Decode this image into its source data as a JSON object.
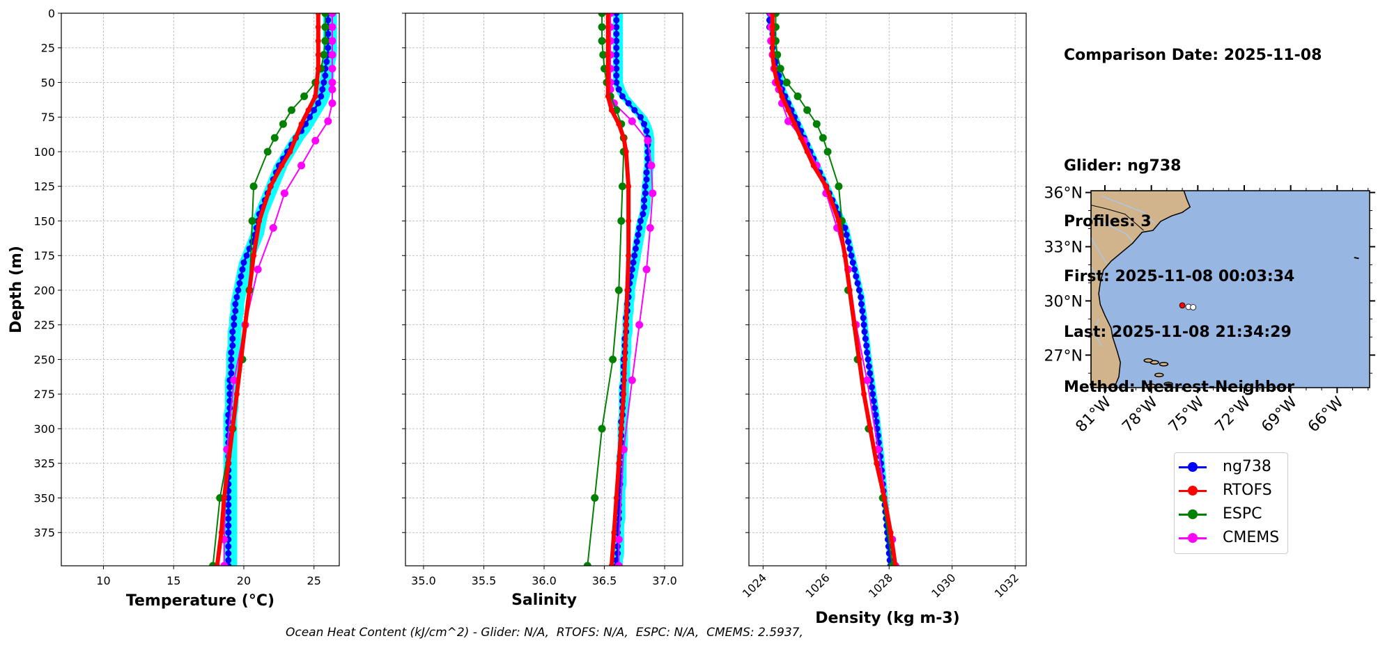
{
  "info": {
    "comparison_date": "Comparison Date: 2025-11-08",
    "glider": "Glider: ng738",
    "profiles": "Profiles: 3",
    "first": "First: 2025-11-08 00:03:34",
    "last": "Last: 2025-11-08 21:34:29",
    "method": "Method: Nearest-Neighbor"
  },
  "footer": "Ocean Heat Content (kJ/cm^2) - Glider: N/A,  RTOFS: N/A,  ESPC: N/A,  CMEMS: 2.5937,",
  "colors": {
    "ng738": "#0000ff",
    "glider_band": "#00ffff",
    "RTOFS": "#ff0000",
    "ESPC": "#008000",
    "CMEMS": "#ff00ff",
    "land": "#d2b48c",
    "ocean": "#97b6e1",
    "river": "#aac8e8"
  },
  "legend": [
    {
      "name": "ng738",
      "color": "#0000ff"
    },
    {
      "name": "RTOFS",
      "color": "#ff0000"
    },
    {
      "name": "ESPC",
      "color": "#008000"
    },
    {
      "name": "CMEMS",
      "color": "#ff00ff"
    }
  ],
  "chart_data": [
    {
      "type": "line",
      "xlabel": "Temperature (°C)",
      "ylabel": "Depth (m)",
      "xlim": [
        7,
        26.8
      ],
      "ylim": [
        399,
        0
      ],
      "xticks": [
        10,
        15,
        20,
        25
      ],
      "yticks": [
        0,
        25,
        50,
        75,
        100,
        125,
        150,
        175,
        200,
        225,
        250,
        275,
        300,
        325,
        350,
        375
      ],
      "grid": true,
      "series": [
        {
          "name": "ng738",
          "y": [
            0,
            5,
            10,
            15,
            20,
            25,
            30,
            35,
            40,
            45,
            50,
            55,
            60,
            65,
            70,
            75,
            80,
            85,
            90,
            95,
            100,
            105,
            110,
            115,
            120,
            125,
            130,
            135,
            140,
            145,
            150,
            155,
            160,
            165,
            170,
            175,
            180,
            185,
            190,
            195,
            200,
            205,
            210,
            215,
            220,
            225,
            230,
            235,
            240,
            245,
            250,
            255,
            260,
            265,
            270,
            275,
            280,
            285,
            290,
            295,
            300,
            305,
            310,
            315,
            320,
            325,
            330,
            335,
            340,
            345,
            350,
            355,
            360,
            365,
            370,
            375,
            380,
            385,
            390,
            395,
            399
          ],
          "x": [
            26.0,
            26.0,
            26.0,
            26.0,
            26.0,
            26.0,
            26.0,
            25.9,
            25.8,
            25.8,
            25.7,
            25.6,
            25.5,
            25.3,
            25.0,
            24.7,
            24.4,
            24.1,
            23.7,
            23.4,
            23.1,
            22.8,
            22.5,
            22.3,
            22.1,
            21.9,
            21.7,
            21.5,
            21.3,
            21.1,
            21.0,
            20.9,
            20.8,
            20.6,
            20.4,
            20.2,
            20.0,
            19.9,
            19.8,
            19.7,
            19.6,
            19.5,
            19.4,
            19.4,
            19.3,
            19.3,
            19.2,
            19.2,
            19.2,
            19.1,
            19.1,
            19.1,
            19.1,
            19.0,
            19.0,
            19.0,
            19.0,
            19.0,
            18.9,
            18.9,
            18.9,
            18.9,
            18.9,
            18.9,
            18.9,
            18.9,
            18.9,
            18.9,
            18.9,
            18.9,
            18.9,
            18.9,
            18.9,
            18.9,
            18.9,
            18.9,
            18.9,
            18.9,
            18.9,
            18.9,
            18.9
          ]
        },
        {
          "name": "RTOFS",
          "y": [
            0,
            10,
            20,
            30,
            40,
            50,
            60,
            70,
            80,
            90,
            100,
            110,
            125,
            150,
            175,
            200,
            225,
            250,
            275,
            300,
            325,
            350,
            375,
            399
          ],
          "x": [
            25.3,
            25.3,
            25.3,
            25.3,
            25.3,
            25.2,
            25.1,
            24.6,
            24.1,
            23.7,
            23.3,
            22.7,
            21.9,
            21.1,
            20.7,
            20.4,
            20.1,
            19.8,
            19.5,
            19.2,
            18.9,
            18.6,
            18.4,
            18.1
          ]
        },
        {
          "name": "ESPC",
          "y": [
            0,
            10,
            20,
            30,
            40,
            50,
            60,
            70,
            80,
            90,
            100,
            125,
            150,
            200,
            250,
            300,
            350,
            399
          ],
          "x": [
            25.8,
            25.8,
            25.8,
            25.7,
            25.5,
            25.1,
            24.3,
            23.4,
            22.8,
            22.2,
            21.7,
            20.7,
            20.6,
            20.4,
            19.9,
            19.2,
            18.3,
            17.8
          ]
        },
        {
          "name": "CMEMS",
          "y": [
            0,
            10,
            20,
            30,
            40,
            50,
            55,
            65,
            78,
            92,
            110,
            130,
            155,
            185,
            225,
            265,
            315,
            380,
            399
          ],
          "x": [
            26.3,
            26.3,
            26.3,
            26.3,
            26.3,
            26.3,
            26.3,
            26.3,
            26.0,
            25.1,
            24.1,
            22.9,
            22.1,
            21.0,
            20.1,
            19.3,
            18.8,
            18.6,
            18.6
          ]
        }
      ]
    },
    {
      "type": "line",
      "xlabel": "Salinity",
      "ylabel": "",
      "xlim": [
        34.85,
        37.15
      ],
      "ylim": [
        399,
        0
      ],
      "xticks": [
        35.0,
        35.5,
        36.0,
        36.5,
        37.0
      ],
      "grid": true,
      "series": [
        {
          "name": "ng738",
          "y": [
            0,
            5,
            10,
            15,
            20,
            25,
            30,
            35,
            40,
            45,
            50,
            55,
            60,
            65,
            70,
            75,
            80,
            85,
            90,
            95,
            100,
            105,
            110,
            115,
            120,
            125,
            130,
            135,
            140,
            145,
            150,
            155,
            160,
            165,
            170,
            175,
            180,
            185,
            190,
            195,
            200,
            205,
            210,
            215,
            220,
            225,
            230,
            235,
            240,
            245,
            250,
            255,
            260,
            265,
            270,
            275,
            280,
            285,
            290,
            295,
            300,
            305,
            310,
            315,
            320,
            325,
            330,
            335,
            340,
            345,
            350,
            355,
            360,
            365,
            370,
            375,
            380,
            385,
            390,
            395,
            399
          ],
          "x": [
            36.6,
            36.6,
            36.6,
            36.6,
            36.6,
            36.6,
            36.6,
            36.6,
            36.6,
            36.6,
            36.6,
            36.62,
            36.65,
            36.7,
            36.75,
            36.8,
            36.83,
            36.85,
            36.86,
            36.86,
            36.86,
            36.86,
            36.86,
            36.85,
            36.85,
            36.84,
            36.84,
            36.83,
            36.83,
            36.82,
            36.8,
            36.79,
            36.78,
            36.77,
            36.76,
            36.75,
            36.74,
            36.73,
            36.72,
            36.71,
            36.7,
            36.7,
            36.69,
            36.69,
            36.68,
            36.68,
            36.68,
            36.67,
            36.67,
            36.67,
            36.66,
            36.66,
            36.66,
            36.66,
            36.65,
            36.65,
            36.65,
            36.65,
            36.65,
            36.64,
            36.64,
            36.64,
            36.64,
            36.64,
            36.63,
            36.63,
            36.63,
            36.63,
            36.63,
            36.62,
            36.62,
            36.62,
            36.62,
            36.62,
            36.61,
            36.61,
            36.61,
            36.61,
            36.61,
            36.6,
            36.6
          ]
        },
        {
          "name": "RTOFS",
          "y": [
            0,
            10,
            20,
            30,
            40,
            50,
            60,
            70,
            80,
            90,
            100,
            125,
            150,
            175,
            200,
            225,
            250,
            275,
            300,
            325,
            350,
            375,
            399
          ],
          "x": [
            36.53,
            36.53,
            36.53,
            36.53,
            36.53,
            36.53,
            36.53,
            36.56,
            36.62,
            36.66,
            36.68,
            36.7,
            36.7,
            36.7,
            36.69,
            36.68,
            36.67,
            36.66,
            36.64,
            36.62,
            36.6,
            36.58,
            36.56
          ]
        },
        {
          "name": "ESPC",
          "y": [
            0,
            10,
            20,
            30,
            40,
            50,
            60,
            70,
            80,
            90,
            100,
            125,
            150,
            200,
            250,
            300,
            350,
            399
          ],
          "x": [
            36.48,
            36.48,
            36.48,
            36.49,
            36.5,
            36.52,
            36.55,
            36.6,
            36.64,
            36.66,
            36.66,
            36.65,
            36.64,
            36.62,
            36.57,
            36.48,
            36.42,
            36.36
          ]
        },
        {
          "name": "CMEMS",
          "y": [
            0,
            10,
            20,
            30,
            40,
            50,
            55,
            65,
            78,
            92,
            110,
            130,
            155,
            185,
            225,
            265,
            315,
            380,
            399
          ],
          "x": [
            36.55,
            36.55,
            36.55,
            36.55,
            36.55,
            36.55,
            36.55,
            36.58,
            36.73,
            36.86,
            36.89,
            36.9,
            36.88,
            36.85,
            36.79,
            36.73,
            36.66,
            36.62,
            36.62
          ]
        }
      ]
    },
    {
      "type": "line",
      "xlabel": "Density (kg m-3)",
      "ylabel": "",
      "xlim": [
        1023.55,
        1032.35
      ],
      "ylim": [
        399,
        0
      ],
      "xticks": [
        1024,
        1026,
        1028,
        1030,
        1032
      ],
      "grid": true,
      "series": [
        {
          "name": "ng738",
          "y": [
            0,
            5,
            10,
            15,
            20,
            25,
            30,
            35,
            40,
            45,
            50,
            55,
            60,
            65,
            70,
            75,
            80,
            85,
            90,
            95,
            100,
            105,
            110,
            115,
            120,
            125,
            130,
            135,
            140,
            145,
            150,
            155,
            160,
            165,
            170,
            175,
            180,
            185,
            190,
            195,
            200,
            205,
            210,
            215,
            220,
            225,
            230,
            235,
            240,
            245,
            250,
            255,
            260,
            265,
            270,
            275,
            280,
            285,
            290,
            295,
            300,
            305,
            310,
            315,
            320,
            325,
            330,
            335,
            340,
            345,
            350,
            355,
            360,
            365,
            370,
            375,
            380,
            385,
            390,
            395,
            399
          ],
          "x": [
            1024.2,
            1024.2,
            1024.2,
            1024.3,
            1024.3,
            1024.3,
            1024.35,
            1024.4,
            1024.45,
            1024.5,
            1024.55,
            1024.6,
            1024.7,
            1024.8,
            1024.9,
            1025.0,
            1025.1,
            1025.2,
            1025.3,
            1025.4,
            1025.5,
            1025.6,
            1025.7,
            1025.8,
            1025.9,
            1026.0,
            1026.1,
            1026.2,
            1026.3,
            1026.4,
            1026.5,
            1026.6,
            1026.65,
            1026.7,
            1026.75,
            1026.8,
            1026.85,
            1026.9,
            1026.95,
            1027.0,
            1027.05,
            1027.1,
            1027.12,
            1027.15,
            1027.18,
            1027.2,
            1027.22,
            1027.25,
            1027.28,
            1027.3,
            1027.33,
            1027.36,
            1027.39,
            1027.42,
            1027.45,
            1027.48,
            1027.51,
            1027.54,
            1027.57,
            1027.6,
            1027.62,
            1027.65,
            1027.67,
            1027.7,
            1027.72,
            1027.74,
            1027.76,
            1027.78,
            1027.8,
            1027.82,
            1027.84,
            1027.86,
            1027.88,
            1027.9,
            1027.92,
            1027.94,
            1027.96,
            1027.98,
            1028.0,
            1028.02,
            1028.04
          ]
        },
        {
          "name": "RTOFS",
          "y": [
            0,
            10,
            20,
            30,
            40,
            50,
            60,
            70,
            80,
            90,
            100,
            110,
            125,
            150,
            175,
            200,
            225,
            250,
            275,
            300,
            325,
            350,
            375,
            399
          ],
          "x": [
            1024.3,
            1024.3,
            1024.3,
            1024.3,
            1024.35,
            1024.45,
            1024.6,
            1024.8,
            1025.0,
            1025.2,
            1025.4,
            1025.6,
            1026.0,
            1026.4,
            1026.6,
            1026.75,
            1026.9,
            1027.05,
            1027.2,
            1027.4,
            1027.6,
            1027.85,
            1028.05,
            1028.2
          ]
        },
        {
          "name": "ESPC",
          "y": [
            0,
            10,
            20,
            30,
            40,
            50,
            60,
            70,
            80,
            90,
            100,
            125,
            150,
            200,
            250,
            300,
            350,
            399
          ],
          "x": [
            1024.4,
            1024.4,
            1024.4,
            1024.45,
            1024.55,
            1024.75,
            1025.1,
            1025.4,
            1025.7,
            1025.9,
            1026.05,
            1026.4,
            1026.5,
            1026.7,
            1027.0,
            1027.35,
            1027.8,
            1028.1
          ]
        },
        {
          "name": "CMEMS",
          "y": [
            0,
            10,
            20,
            30,
            40,
            50,
            55,
            65,
            78,
            92,
            110,
            130,
            155,
            185,
            225,
            265,
            315,
            380,
            399
          ],
          "x": [
            1024.25,
            1024.25,
            1024.25,
            1024.3,
            1024.35,
            1024.4,
            1024.5,
            1024.6,
            1024.8,
            1025.3,
            1025.7,
            1026.0,
            1026.35,
            1026.7,
            1026.95,
            1027.3,
            1027.65,
            1028.1,
            1028.2
          ]
        }
      ]
    },
    {
      "type": "map",
      "lon_ticks": [
        "81°W",
        "78°W",
        "75°W",
        "72°W",
        "69°W",
        "66°W"
      ],
      "lat_ticks": [
        "36°N",
        "33°N",
        "30°N",
        "27°N"
      ],
      "lon_range": [
        -81.9,
        -63.9
      ],
      "lat_range": [
        25.2,
        36.1
      ],
      "markers": [
        {
          "label": "RTOFS",
          "lon": -76.0,
          "lat": 29.75,
          "color": "#ff0000"
        },
        {
          "label": "ng738",
          "lon": -75.6,
          "lat": 29.67,
          "color": "#ffffff"
        },
        {
          "label": "ng738",
          "lon": -75.3,
          "lat": 29.65,
          "color": "#ffffff"
        }
      ]
    }
  ]
}
